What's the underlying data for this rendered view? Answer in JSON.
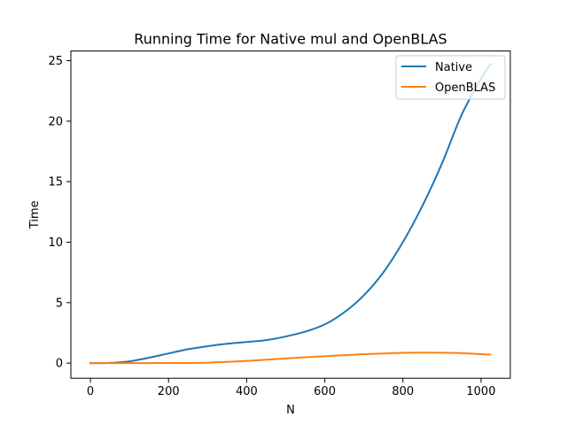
{
  "chart_data": {
    "type": "line",
    "title": "Running Time for Native mul and OpenBLAS",
    "xlabel": "N",
    "ylabel": "Time",
    "xlim": [
      -50,
      1075
    ],
    "ylim": [
      -1.25,
      25.8
    ],
    "xticks": [
      0,
      200,
      400,
      600,
      800,
      1000
    ],
    "yticks": [
      0,
      5,
      10,
      15,
      20,
      25
    ],
    "grid": false,
    "legend_position": "top-right",
    "series": [
      {
        "name": "Native",
        "color": "#1f77b4",
        "x": [
          0,
          50,
          100,
          150,
          200,
          250,
          300,
          350,
          400,
          450,
          500,
          550,
          600,
          650,
          700,
          750,
          800,
          850,
          900,
          950,
          1000,
          1024
        ],
        "y": [
          0,
          0.02,
          0.15,
          0.45,
          0.8,
          1.15,
          1.4,
          1.6,
          1.75,
          1.9,
          2.2,
          2.6,
          3.2,
          4.2,
          5.6,
          7.5,
          10.0,
          13.0,
          16.5,
          20.5,
          23.5,
          24.7
        ]
      },
      {
        "name": "OpenBLAS",
        "color": "#ff7f0e",
        "x": [
          0,
          50,
          100,
          150,
          200,
          250,
          300,
          350,
          400,
          450,
          500,
          550,
          600,
          650,
          700,
          750,
          800,
          850,
          900,
          950,
          1000,
          1024
        ],
        "y": [
          0,
          0,
          0,
          0,
          0.01,
          0.01,
          0.04,
          0.1,
          0.18,
          0.28,
          0.38,
          0.48,
          0.57,
          0.66,
          0.74,
          0.8,
          0.85,
          0.87,
          0.86,
          0.82,
          0.74,
          0.7
        ]
      }
    ]
  }
}
